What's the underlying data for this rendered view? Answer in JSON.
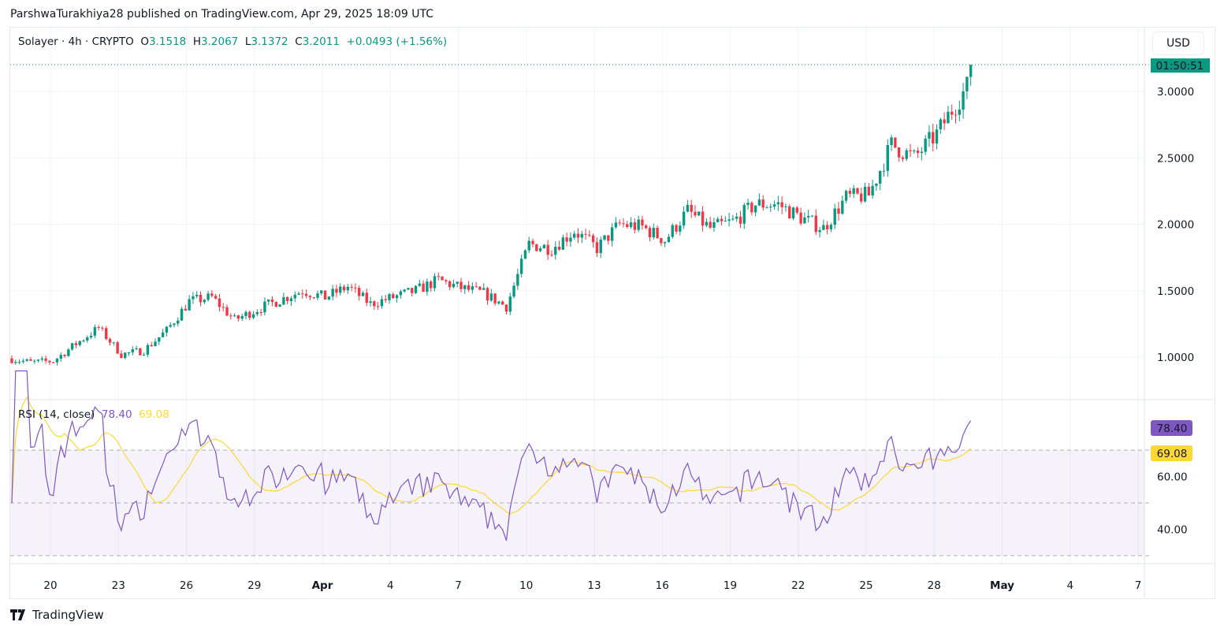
{
  "publisher_line": "ParshwaTurakhiya28 published on TradingView.com, Apr 29, 2025 18:09 UTC",
  "legend": {
    "symbol": "Solayer · 4h · CRYPTO",
    "o_label": "O",
    "o": "3.1518",
    "h_label": "H",
    "h": "3.2067",
    "l_label": "L",
    "l": "3.1372",
    "c_label": "C",
    "c": "3.2011",
    "change": "+0.0493 (+1.56%)"
  },
  "currency": "USD",
  "countdown": "01:50:51",
  "rsi_legend": {
    "label": "RSI (14, close)",
    "rsi": "78.40",
    "ma": "69.08"
  },
  "footer": {
    "brand": "TradingView"
  },
  "colors": {
    "up": "#089981",
    "down": "#f23645",
    "rsi": "#7e57c2",
    "rsi_ma": "#fdd835"
  },
  "chart_data": [
    {
      "type": "candlestick",
      "title": "Solayer · 4h · CRYPTO",
      "ylim": [
        0.7,
        3.3
      ],
      "y_ticks": [
        "1.0000",
        "1.5000",
        "2.0000",
        "2.5000",
        "3.0000"
      ],
      "x_ticks": [
        "20",
        "23",
        "26",
        "29",
        "Apr",
        "4",
        "7",
        "10",
        "13",
        "16",
        "19",
        "22",
        "25",
        "28",
        "May",
        "4",
        "7"
      ],
      "daily_closes_from_mar18": [
        0.99,
        0.96,
        0.97,
        1.1,
        1.22,
        1.02,
        1.05,
        1.2,
        1.42,
        1.45,
        1.28,
        1.36,
        1.43,
        1.5,
        1.45,
        1.53,
        1.4,
        1.45,
        1.5,
        1.58,
        1.52,
        1.48,
        1.38,
        1.85,
        1.82,
        1.95,
        1.82,
        2.0,
        1.98,
        1.88,
        2.1,
        1.97,
        2.02,
        2.15,
        2.15,
        2.05,
        1.97,
        2.2,
        2.22,
        2.6,
        2.5,
        2.68,
        2.95,
        3.2
      ],
      "last_close": 3.2011
    },
    {
      "type": "line",
      "title": "RSI (14, close)",
      "ylim": [
        25,
        85
      ],
      "y_ticks": [
        "40.00",
        "60.00"
      ],
      "bands": [
        30,
        50,
        70
      ],
      "series": [
        {
          "name": "RSI",
          "last": 78.4
        },
        {
          "name": "RSI MA",
          "last": 69.08
        }
      ]
    }
  ]
}
